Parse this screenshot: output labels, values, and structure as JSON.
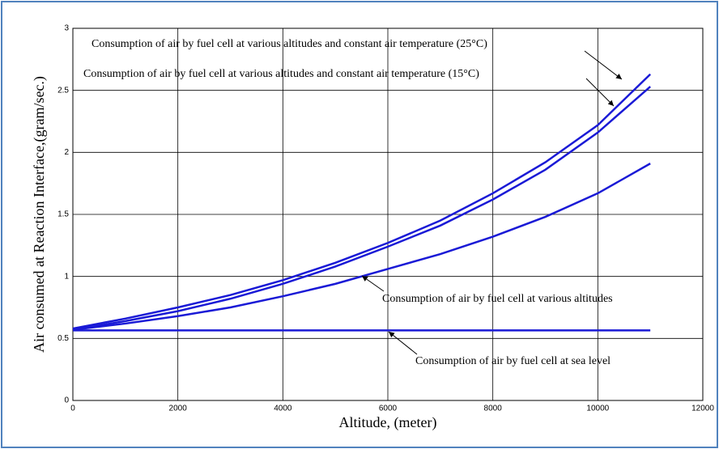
{
  "chart_data": {
    "type": "line",
    "xlabel": "Altitude, (meter)",
    "ylabel": "Air consumed at Reaction Interface,(gram/sec.)",
    "x": [
      0,
      1000,
      2000,
      3000,
      4000,
      5000,
      6000,
      7000,
      8000,
      9000,
      10000,
      11000
    ],
    "series": [
      {
        "name": "Consumption of air by fuel cell at various altitudes and constant air temperature (25°C)",
        "color": "#1a1ad6",
        "values": [
          0.58,
          0.66,
          0.75,
          0.85,
          0.97,
          1.11,
          1.27,
          1.45,
          1.67,
          1.92,
          2.22,
          2.63
        ]
      },
      {
        "name": "Consumption of air by fuel cell at various altitudes and constant air temperature (15°C)",
        "color": "#1a1ad6",
        "values": [
          0.57,
          0.64,
          0.72,
          0.82,
          0.94,
          1.08,
          1.24,
          1.41,
          1.62,
          1.86,
          2.16,
          2.53
        ]
      },
      {
        "name": "Consumption of air by fuel cell at various altitudes",
        "color": "#1a1ad6",
        "values": [
          0.57,
          0.62,
          0.68,
          0.75,
          0.84,
          0.94,
          1.06,
          1.18,
          1.32,
          1.48,
          1.67,
          1.91
        ]
      },
      {
        "name": "Consumption of air by fuel cell at sea level",
        "color": "#1a1ad6",
        "values": [
          0.565,
          0.565,
          0.565,
          0.565,
          0.565,
          0.565,
          0.565,
          0.565,
          0.565,
          0.565,
          0.565,
          0.565
        ]
      }
    ],
    "xlim": [
      0,
      12000
    ],
    "xticks": [
      0,
      2000,
      4000,
      6000,
      8000,
      10000,
      12000
    ],
    "ylim": [
      0,
      3
    ],
    "yticks": [
      0,
      0.5,
      1,
      1.5,
      2,
      2.5,
      3
    ],
    "grid": true
  }
}
